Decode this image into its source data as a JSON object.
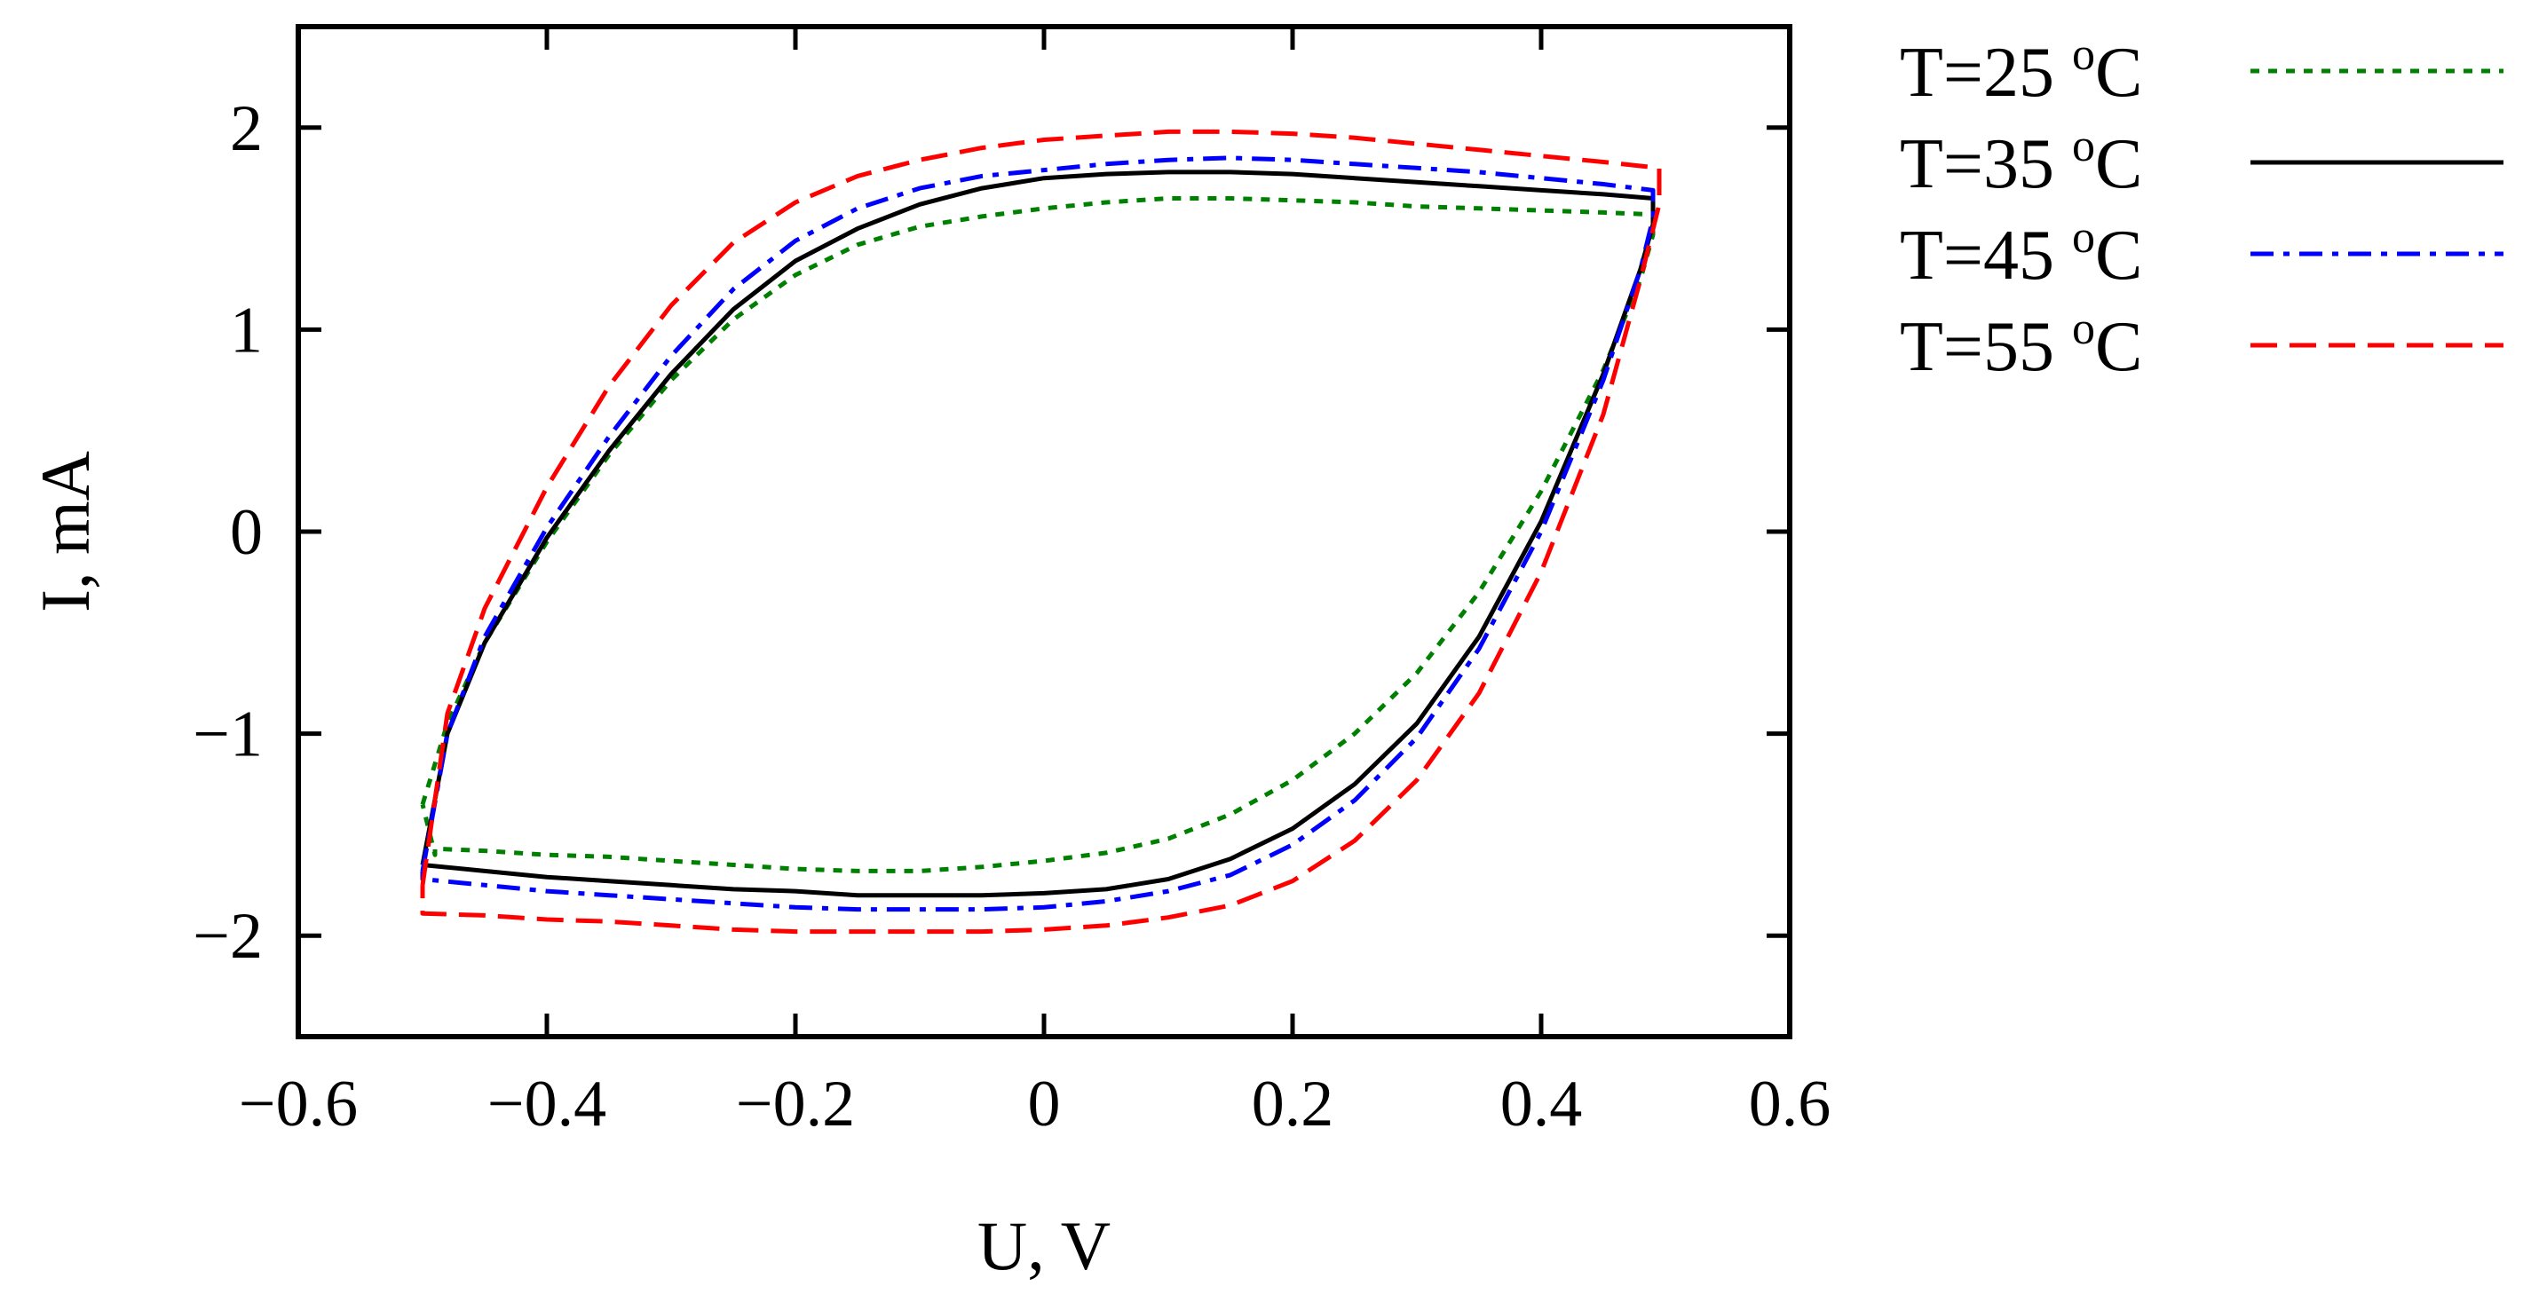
{
  "chart_data": {
    "type": "line",
    "title": "",
    "xlabel": "U, V",
    "ylabel": "I, mA",
    "xlim": [
      -0.6,
      0.6
    ],
    "ylim": [
      -2.5,
      2.5
    ],
    "xticks": [
      -0.6,
      -0.4,
      -0.2,
      0,
      0.2,
      0.4,
      0.6
    ],
    "xtick_labels": [
      "−0.6",
      "−0.4",
      "−0.2",
      "0",
      "0.2",
      "0.4",
      "0.6"
    ],
    "yticks": [
      -2,
      -1,
      0,
      1,
      2
    ],
    "ytick_labels": [
      "−2",
      "−1",
      "0",
      "1",
      "2"
    ],
    "grid": false,
    "legend_position": "right, outside",
    "series": [
      {
        "name": "T=25 oC",
        "label_main": "T=25 ",
        "label_sup": "o",
        "label_unit": "C",
        "color": "#008000",
        "dash": "dotted",
        "x": [
          -0.5,
          -0.48,
          -0.45,
          -0.4,
          -0.35,
          -0.3,
          -0.25,
          -0.2,
          -0.15,
          -0.1,
          -0.05,
          0,
          0.05,
          0.1,
          0.15,
          0.2,
          0.25,
          0.3,
          0.35,
          0.4,
          0.45,
          0.49,
          0.49,
          0.48,
          0.45,
          0.4,
          0.35,
          0.3,
          0.25,
          0.2,
          0.15,
          0.1,
          0.05,
          0,
          -0.05,
          -0.1,
          -0.15,
          -0.2,
          -0.25,
          -0.3,
          -0.35,
          -0.4,
          -0.45,
          -0.49,
          -0.49,
          -0.5
        ],
        "y": [
          -1.35,
          -0.95,
          -0.55,
          -0.05,
          0.38,
          0.75,
          1.05,
          1.27,
          1.42,
          1.51,
          1.56,
          1.6,
          1.63,
          1.65,
          1.65,
          1.64,
          1.63,
          1.61,
          1.6,
          1.59,
          1.58,
          1.57,
          1.47,
          1.25,
          0.8,
          0.2,
          -0.3,
          -0.7,
          -1.0,
          -1.23,
          -1.4,
          -1.52,
          -1.59,
          -1.63,
          -1.66,
          -1.68,
          -1.68,
          -1.67,
          -1.65,
          -1.63,
          -1.61,
          -1.6,
          -1.58,
          -1.57,
          -1.6,
          -1.35
        ]
      },
      {
        "name": "T=35 oC",
        "label_main": "T=35 ",
        "label_sup": "o",
        "label_unit": "C",
        "color": "#000000",
        "dash": "solid",
        "x": [
          -0.5,
          -0.48,
          -0.45,
          -0.4,
          -0.35,
          -0.3,
          -0.25,
          -0.2,
          -0.15,
          -0.1,
          -0.05,
          0,
          0.05,
          0.1,
          0.15,
          0.2,
          0.25,
          0.3,
          0.35,
          0.4,
          0.45,
          0.49,
          0.49,
          0.48,
          0.45,
          0.4,
          0.35,
          0.3,
          0.25,
          0.2,
          0.15,
          0.1,
          0.05,
          0,
          -0.05,
          -0.1,
          -0.15,
          -0.2,
          -0.25,
          -0.3,
          -0.35,
          -0.4,
          -0.45,
          -0.5,
          -0.5
        ],
        "y": [
          -1.65,
          -1.0,
          -0.55,
          -0.03,
          0.4,
          0.78,
          1.1,
          1.34,
          1.5,
          1.62,
          1.7,
          1.75,
          1.77,
          1.78,
          1.78,
          1.77,
          1.75,
          1.73,
          1.71,
          1.69,
          1.67,
          1.65,
          1.52,
          1.3,
          0.78,
          0.05,
          -0.52,
          -0.95,
          -1.25,
          -1.47,
          -1.62,
          -1.72,
          -1.77,
          -1.79,
          -1.8,
          -1.8,
          -1.8,
          -1.78,
          -1.77,
          -1.75,
          -1.73,
          -1.71,
          -1.68,
          -1.65,
          -1.65
        ]
      },
      {
        "name": "T=45 oC",
        "label_main": "T=45 ",
        "label_sup": "o",
        "label_unit": "C",
        "color": "#0000ff",
        "dash": "dashdot",
        "x": [
          -0.5,
          -0.48,
          -0.45,
          -0.4,
          -0.35,
          -0.3,
          -0.25,
          -0.2,
          -0.15,
          -0.1,
          -0.05,
          0,
          0.05,
          0.1,
          0.15,
          0.2,
          0.25,
          0.3,
          0.35,
          0.4,
          0.45,
          0.49,
          0.49,
          0.48,
          0.45,
          0.4,
          0.35,
          0.3,
          0.25,
          0.2,
          0.15,
          0.1,
          0.05,
          0,
          -0.05,
          -0.1,
          -0.15,
          -0.2,
          -0.25,
          -0.3,
          -0.35,
          -0.4,
          -0.45,
          -0.5,
          -0.5
        ],
        "y": [
          -1.68,
          -1.0,
          -0.52,
          0.02,
          0.47,
          0.87,
          1.2,
          1.44,
          1.6,
          1.7,
          1.76,
          1.79,
          1.82,
          1.84,
          1.85,
          1.84,
          1.82,
          1.8,
          1.78,
          1.75,
          1.72,
          1.69,
          1.55,
          1.3,
          0.75,
          0.0,
          -0.58,
          -1.02,
          -1.33,
          -1.55,
          -1.7,
          -1.78,
          -1.83,
          -1.86,
          -1.87,
          -1.87,
          -1.87,
          -1.86,
          -1.84,
          -1.82,
          -1.8,
          -1.78,
          -1.75,
          -1.72,
          -1.68
        ]
      },
      {
        "name": "T=55 oC",
        "label_main": "T=55 ",
        "label_sup": "o",
        "label_unit": "C",
        "color": "#ff0000",
        "dash": "dashed",
        "x": [
          -0.5,
          -0.48,
          -0.45,
          -0.4,
          -0.35,
          -0.3,
          -0.25,
          -0.2,
          -0.15,
          -0.1,
          -0.05,
          0,
          0.05,
          0.1,
          0.15,
          0.2,
          0.25,
          0.3,
          0.35,
          0.4,
          0.45,
          0.495,
          0.495,
          0.48,
          0.45,
          0.4,
          0.35,
          0.3,
          0.25,
          0.2,
          0.15,
          0.1,
          0.05,
          0,
          -0.05,
          -0.1,
          -0.15,
          -0.2,
          -0.25,
          -0.3,
          -0.35,
          -0.4,
          -0.45,
          -0.5,
          -0.5
        ],
        "y": [
          -1.75,
          -0.9,
          -0.38,
          0.22,
          0.72,
          1.12,
          1.43,
          1.63,
          1.76,
          1.84,
          1.9,
          1.94,
          1.96,
          1.98,
          1.98,
          1.97,
          1.95,
          1.92,
          1.89,
          1.86,
          1.83,
          1.8,
          1.62,
          1.25,
          0.58,
          -0.2,
          -0.8,
          -1.23,
          -1.53,
          -1.73,
          -1.85,
          -1.91,
          -1.95,
          -1.97,
          -1.98,
          -1.98,
          -1.98,
          -1.98,
          -1.97,
          -1.95,
          -1.93,
          -1.92,
          -1.9,
          -1.89,
          -1.75
        ]
      }
    ]
  }
}
